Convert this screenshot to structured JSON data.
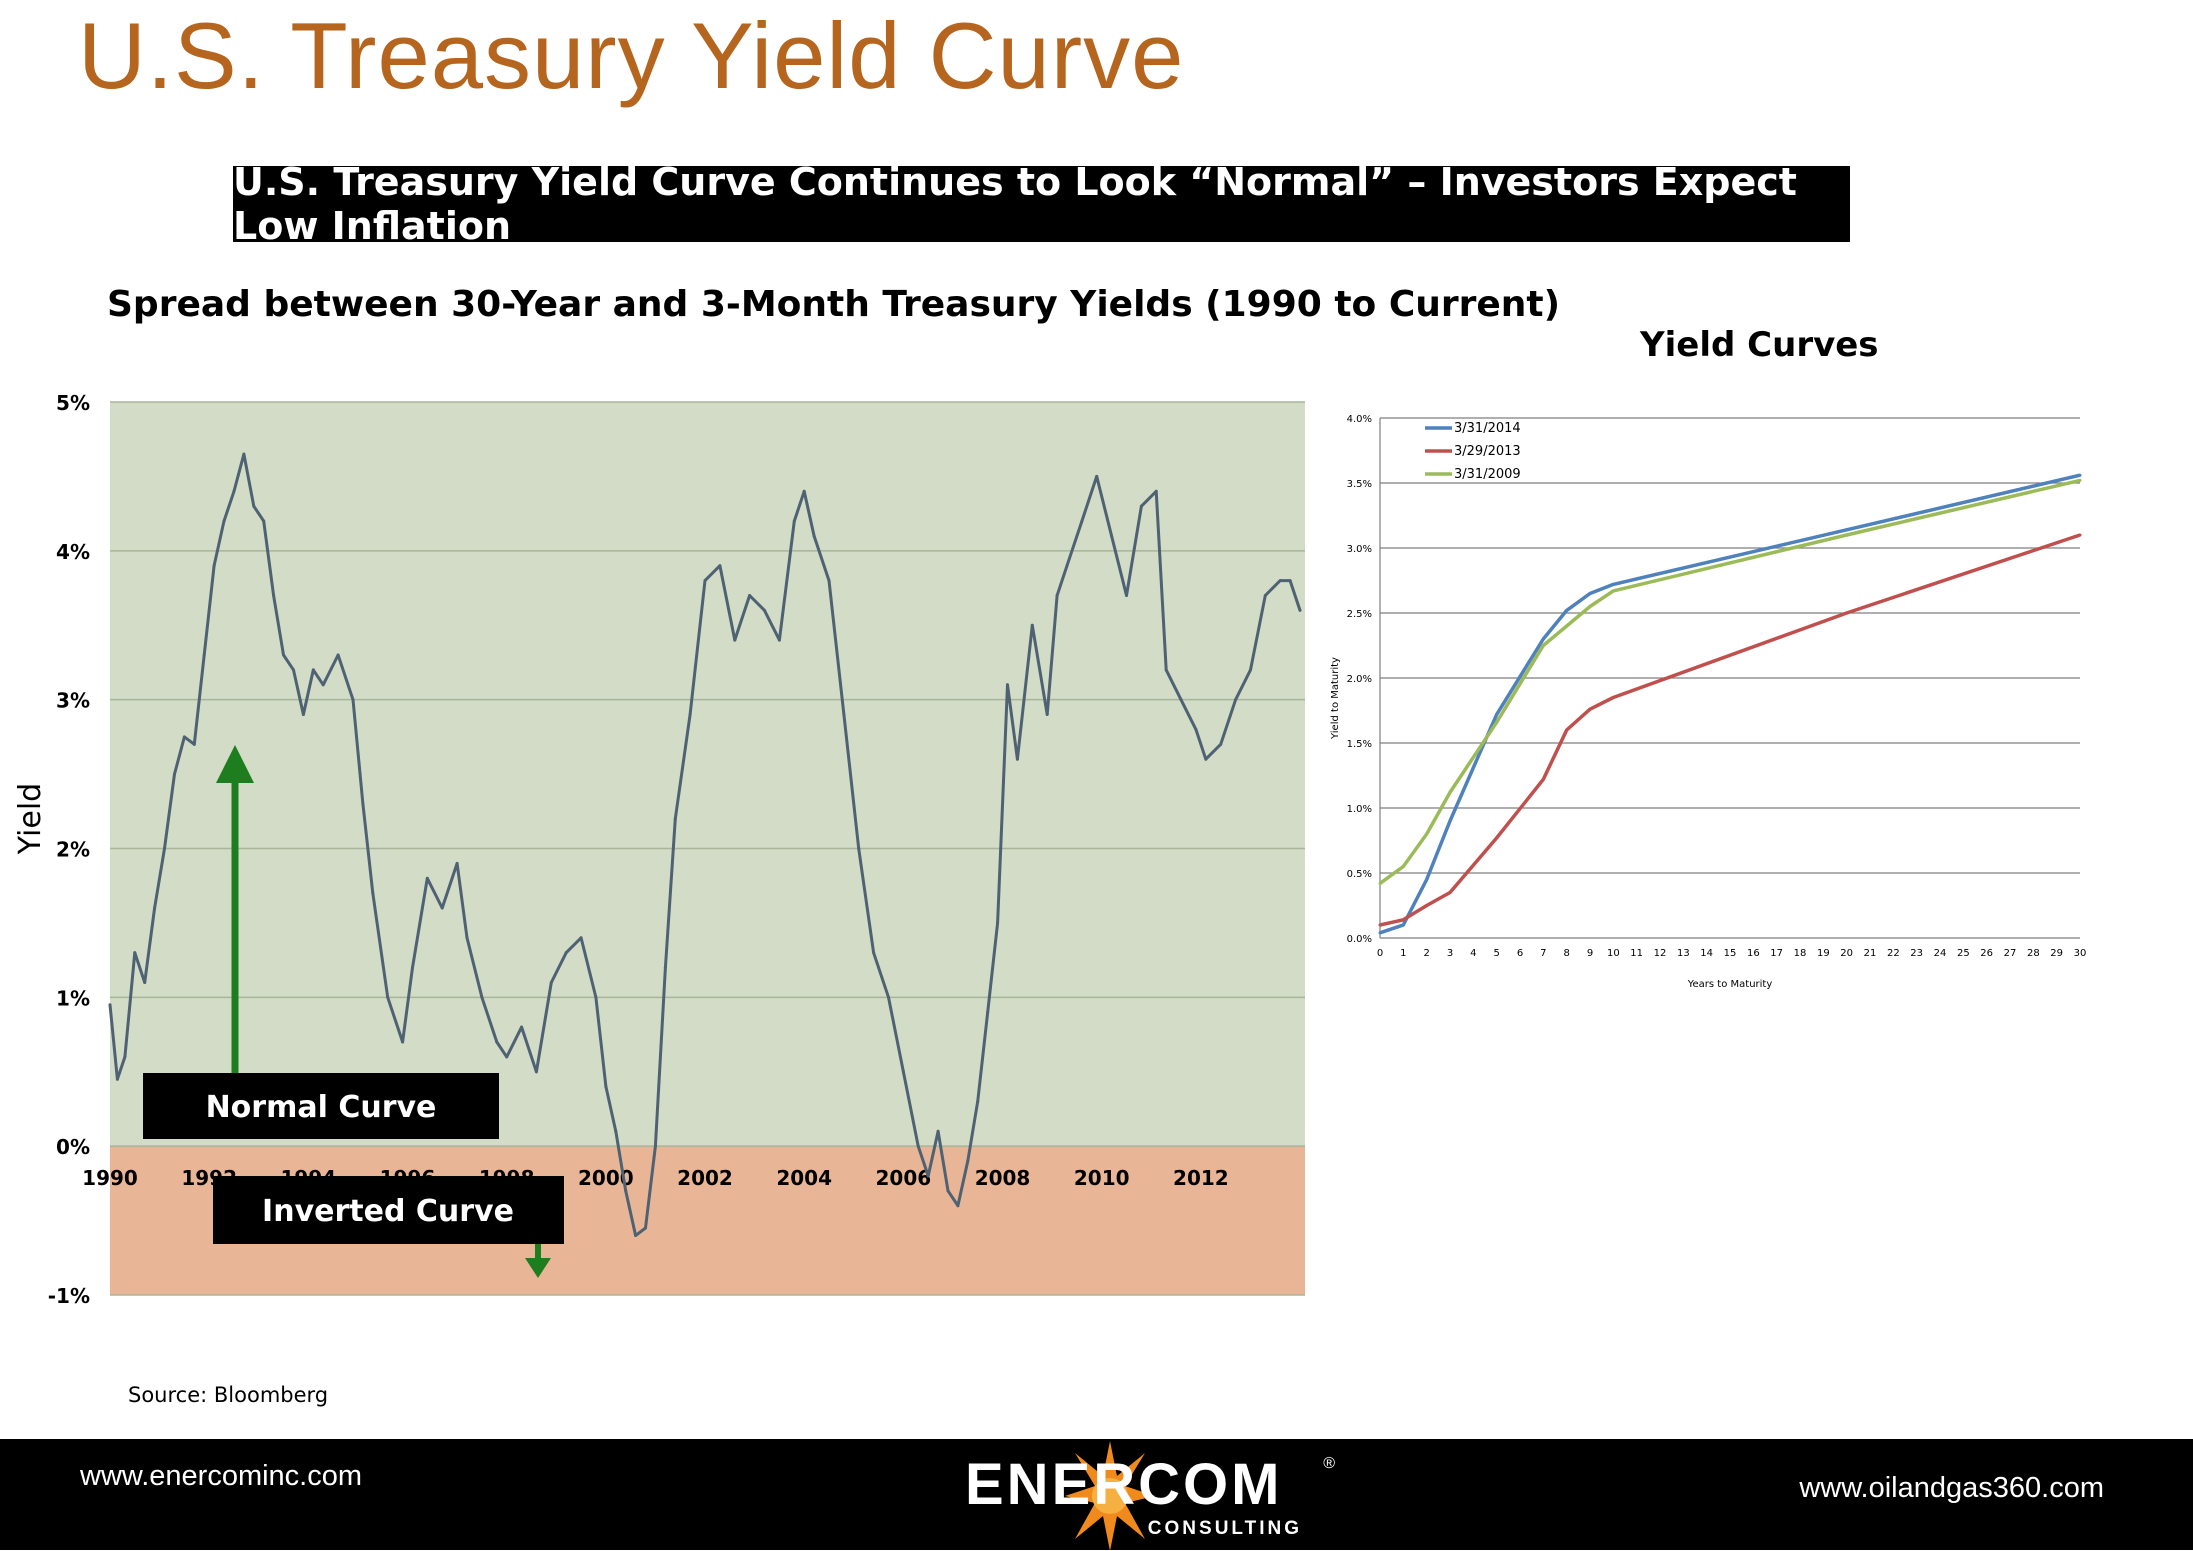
{
  "page": {
    "title": "U.S. Treasury Yield Curve",
    "banner": "U.S. Treasury Yield Curve Continues  to Look “Normal” – Investors Expect Low Inflation",
    "subtitle": "Spread between 30-Year and 3-Month Treasury Yields (1990 to Current)",
    "right_title": "Yield Curves",
    "source": "Source: Bloomberg"
  },
  "footer": {
    "left_url": "www.enercominc.com",
    "right_url": "www.oilandgas360.com",
    "logo_text": "ENERCOM",
    "logo_sub": "CONSULTING",
    "logo_reg": "®"
  },
  "colors": {
    "title": "#b5651d",
    "normal_zone": "#d2dcc6",
    "inverted_zone": "#e8b596",
    "spread_line": "#4e6273",
    "arrow": "#1e7d1e",
    "s2014": "#4f81bd",
    "s2013": "#c0504d",
    "s2009": "#9bbb59"
  },
  "chart_data": [
    {
      "type": "line",
      "ylabel": "Yield",
      "ylim": [
        -1,
        5
      ],
      "y_tick_labels": [
        "5%",
        "4%",
        "3%",
        "2%",
        "1%",
        "0%",
        "-1%"
      ],
      "y_ticks": [
        5,
        4,
        3,
        2,
        1,
        0,
        -1
      ],
      "x_tick_labels": [
        "1990",
        "1992",
        "1994",
        "1996",
        "1998",
        "2000",
        "2002",
        "2004",
        "2006",
        "2008",
        "2010",
        "2012"
      ],
      "x_ticks": [
        1990,
        1992,
        1994,
        1996,
        1998,
        2000,
        2002,
        2004,
        2006,
        2008,
        2010,
        2012
      ],
      "xlim": [
        1990,
        2014.1
      ],
      "zone_labels": {
        "normal": "Normal Curve",
        "inverted": "Inverted Curve"
      },
      "series": [
        {
          "x": [
            1990.0,
            1990.15,
            1990.3,
            1990.5,
            1990.7,
            1990.9,
            1991.1,
            1991.3,
            1991.5,
            1991.7,
            1991.9,
            1992.1,
            1992.3,
            1992.5,
            1992.7,
            1992.9,
            1993.1,
            1993.3,
            1993.5,
            1993.7,
            1993.9,
            1994.1,
            1994.3,
            1994.6,
            1994.9,
            1995.1,
            1995.3,
            1995.6,
            1995.9,
            1996.1,
            1996.4,
            1996.7,
            1997.0,
            1997.2,
            1997.5,
            1997.8,
            1998.0,
            1998.3,
            1998.6,
            1998.9,
            1999.2,
            1999.5,
            1999.8,
            2000.0,
            2000.2,
            2000.4,
            2000.6,
            2000.8,
            2001.0,
            2001.2,
            2001.4,
            2001.7,
            2002.0,
            2002.3,
            2002.6,
            2002.9,
            2003.2,
            2003.5,
            2003.8,
            2004.0,
            2004.2,
            2004.5,
            2004.8,
            2005.1,
            2005.4,
            2005.7,
            2006.0,
            2006.3,
            2006.5,
            2006.7,
            2006.9,
            2007.1,
            2007.3,
            2007.5,
            2007.7,
            2007.9,
            2008.1,
            2008.3,
            2008.6,
            2008.9,
            2009.1,
            2009.3,
            2009.6,
            2009.9,
            2010.2,
            2010.5,
            2010.8,
            2011.1,
            2011.3,
            2011.6,
            2011.9,
            2012.1,
            2012.4,
            2012.7,
            2013.0,
            2013.3,
            2013.6,
            2013.8,
            2014.0
          ],
          "y": [
            0.95,
            0.45,
            0.6,
            1.3,
            1.1,
            1.6,
            2.0,
            2.5,
            2.75,
            2.7,
            3.3,
            3.9,
            4.2,
            4.4,
            4.65,
            4.3,
            4.2,
            3.7,
            3.3,
            3.2,
            2.9,
            3.2,
            3.1,
            3.3,
            3.0,
            2.3,
            1.7,
            1.0,
            0.7,
            1.2,
            1.8,
            1.6,
            1.9,
            1.4,
            1.0,
            0.7,
            0.6,
            0.8,
            0.5,
            1.1,
            1.3,
            1.4,
            1.0,
            0.4,
            0.1,
            -0.3,
            -0.6,
            -0.55,
            0.0,
            1.2,
            2.2,
            2.9,
            3.8,
            3.9,
            3.4,
            3.7,
            3.6,
            3.4,
            4.2,
            4.4,
            4.1,
            3.8,
            2.9,
            2.0,
            1.3,
            1.0,
            0.5,
            0.0,
            -0.2,
            0.1,
            -0.3,
            -0.4,
            -0.1,
            0.3,
            0.9,
            1.5,
            3.1,
            2.6,
            3.5,
            2.9,
            3.7,
            3.9,
            4.2,
            4.5,
            4.1,
            3.7,
            4.3,
            4.4,
            3.2,
            3.0,
            2.8,
            2.6,
            2.7,
            3.0,
            3.2,
            3.7,
            3.8,
            3.8,
            3.6
          ]
        }
      ]
    },
    {
      "type": "line",
      "xlabel": "Years to Maturity",
      "ylabel": "Yield to Maturity",
      "xlim": [
        0,
        30
      ],
      "ylim": [
        0,
        4
      ],
      "x_tick_labels": [
        "0",
        "1",
        "2",
        "3",
        "4",
        "5",
        "6",
        "7",
        "8",
        "9",
        "10",
        "11",
        "12",
        "13",
        "14",
        "15",
        "16",
        "17",
        "18",
        "19",
        "20",
        "21",
        "22",
        "23",
        "24",
        "25",
        "26",
        "27",
        "28",
        "29",
        "30"
      ],
      "y_tick_labels": [
        "4.0%",
        "3.5%",
        "3.0%",
        "2.5%",
        "2.0%",
        "1.5%",
        "1.0%",
        "0.5%",
        "0.0%"
      ],
      "y_ticks": [
        4.0,
        3.5,
        3.0,
        2.5,
        2.0,
        1.5,
        1.0,
        0.5,
        0.0
      ],
      "legend_position": "top-left",
      "series": [
        {
          "name": "3/31/2014",
          "x": [
            0,
            1,
            2,
            3,
            5,
            7,
            8,
            9,
            10,
            20,
            30
          ],
          "y": [
            0.04,
            0.1,
            0.45,
            0.9,
            1.72,
            2.3,
            2.52,
            2.65,
            2.72,
            3.14,
            3.56
          ]
        },
        {
          "name": "3/29/2013",
          "x": [
            0,
            1,
            2,
            3,
            5,
            7,
            8,
            9,
            10,
            20,
            30
          ],
          "y": [
            0.1,
            0.14,
            0.25,
            0.35,
            0.77,
            1.22,
            1.6,
            1.76,
            1.85,
            2.5,
            3.1
          ]
        },
        {
          "name": "3/31/2009",
          "x": [
            0,
            1,
            2,
            3,
            5,
            7,
            8,
            9,
            10,
            20,
            30
          ],
          "y": [
            0.42,
            0.55,
            0.8,
            1.12,
            1.66,
            2.25,
            2.4,
            2.55,
            2.67,
            3.1,
            3.52
          ]
        }
      ]
    }
  ]
}
